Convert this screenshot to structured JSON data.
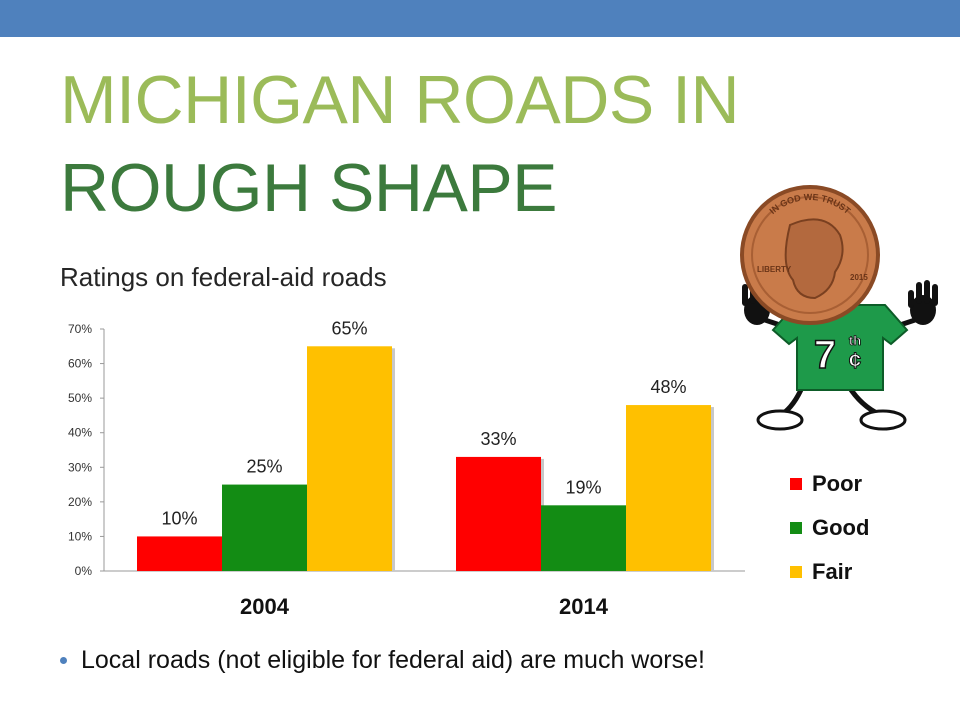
{
  "slide": {
    "title_line1": "MICHIGAN ROADS IN",
    "title_line2": "ROUGH SHAPE",
    "bullet": "Local roads (not eligible for federal aid) are much worse!",
    "mascot_shirt_text": "7",
    "mascot_shirt_sup": "th",
    "mascot_shirt_cent": "¢",
    "coin_top_text": "IN GOD WE TRUST",
    "coin_left_text": "LIBERTY",
    "coin_year": "2015",
    "colors": {
      "accent_bar": "#4f81bd",
      "title_light": "#9bbb59",
      "title_dark": "#3c7a3d"
    }
  },
  "chart_data": {
    "type": "bar",
    "title": "Ratings on federal-aid roads",
    "categories": [
      "2004",
      "2014"
    ],
    "series": [
      {
        "name": "Poor",
        "color": "#ff0000",
        "values": [
          10,
          33
        ]
      },
      {
        "name": "Good",
        "color": "#138c14",
        "values": [
          25,
          19
        ]
      },
      {
        "name": "Fair",
        "color": "#ffc000",
        "values": [
          65,
          48
        ]
      }
    ],
    "yticks": [
      "0%",
      "10%",
      "20%",
      "30%",
      "40%",
      "50%",
      "60%",
      "70%"
    ],
    "data_labels": [
      [
        "10%",
        "33%"
      ],
      [
        "25%",
        "19%"
      ],
      [
        "65%",
        "48%"
      ]
    ],
    "ylim": [
      0,
      70
    ],
    "grid": false,
    "legend": "right"
  }
}
